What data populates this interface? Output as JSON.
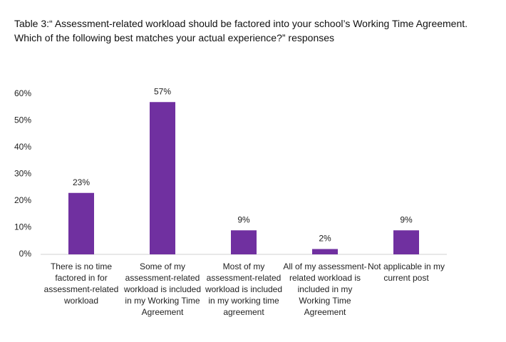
{
  "chart_data": {
    "type": "bar",
    "title": [
      "Table 3:“ Assessment-related workload should be factored into your school’s Working Time Agreement.",
      "Which of the following best matches your actual experience?” responses"
    ],
    "categories": [
      "There is no time factored in for assessment-related workload",
      "Some of my assessment-related workload is included in my Working Time Agreement",
      "Most of my assessment-related workload is included in my working time agreement",
      "All of my assessment-related workload is included in my Working Time Agreement",
      "Not applicable in my current post"
    ],
    "values": [
      23,
      57,
      9,
      2,
      9
    ],
    "value_labels": [
      "23%",
      "57%",
      "9%",
      "2%",
      "9%"
    ],
    "color": "#7030a0",
    "ylim": [
      0,
      60
    ],
    "yticks": [
      {
        "value": 0,
        "label": "0%"
      },
      {
        "value": 10,
        "label": "10%"
      },
      {
        "value": 20,
        "label": "20%"
      },
      {
        "value": 30,
        "label": "30%"
      },
      {
        "value": 40,
        "label": "40%"
      },
      {
        "value": 50,
        "label": "50%"
      },
      {
        "value": 60,
        "label": "60%"
      }
    ],
    "grid": false
  }
}
